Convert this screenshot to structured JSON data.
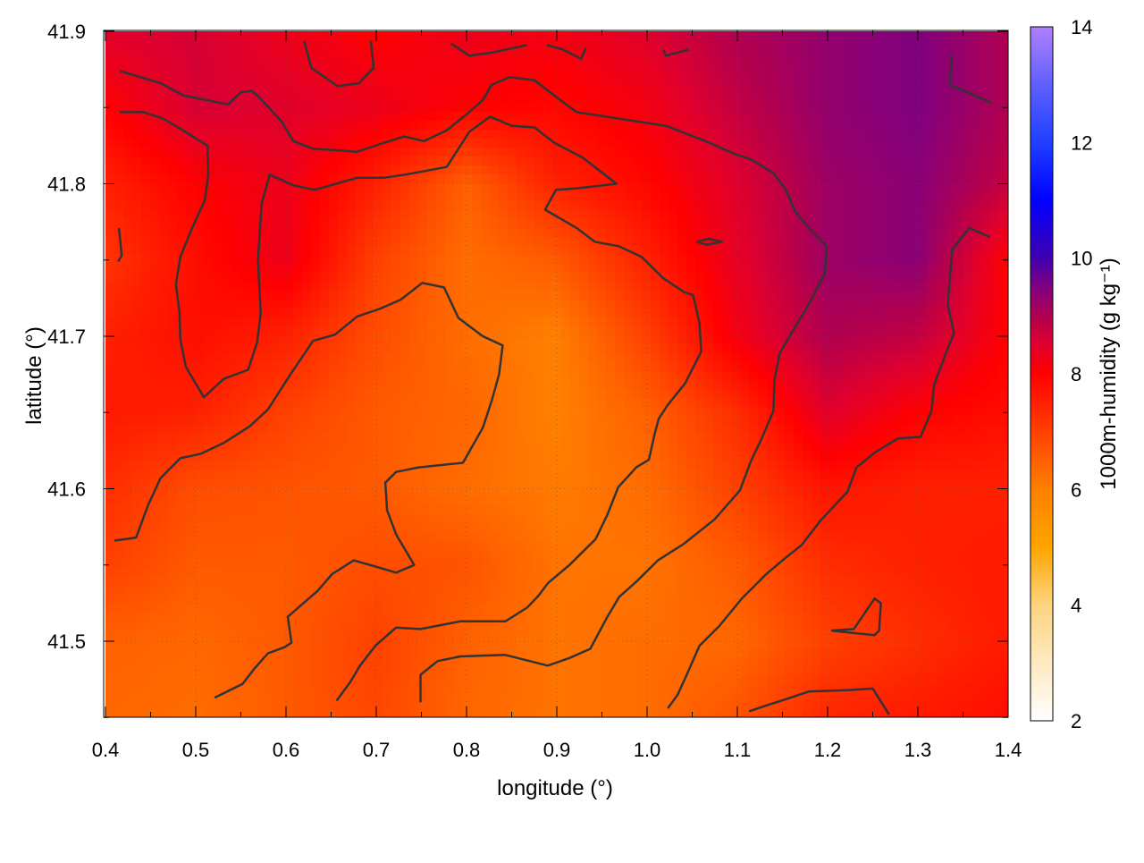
{
  "chart_data": {
    "type": "heatmap",
    "title": "",
    "xlabel": "longitude (°)",
    "ylabel": "latitude (°)",
    "colorbar_label": "1000m-humidity (g kg⁻¹)",
    "xlim": [
      0.4,
      1.4
    ],
    "ylim": [
      41.45,
      41.9
    ],
    "x_ticks": [
      "0.4",
      "0.5",
      "0.6",
      "0.7",
      "0.8",
      "0.9",
      "1.0",
      "1.1",
      "1.2",
      "1.3",
      "1.4"
    ],
    "y_ticks": [
      "41.5",
      "41.6",
      "41.7",
      "41.8",
      "41.9"
    ],
    "colorbar_range": [
      2,
      14
    ],
    "colorbar_ticks": [
      "2",
      "4",
      "6",
      "8",
      "10",
      "12",
      "14"
    ],
    "grid": true,
    "palette": [
      [
        2,
        "#ffffff"
      ],
      [
        4,
        "#fdd480"
      ],
      [
        5,
        "#ffa500"
      ],
      [
        6,
        "#ff8000"
      ],
      [
        7,
        "#ff4000"
      ],
      [
        8,
        "#ff0000"
      ],
      [
        8.5,
        "#e0002c"
      ],
      [
        9,
        "#b00050"
      ],
      [
        9.5,
        "#800080"
      ],
      [
        10,
        "#4000b0"
      ],
      [
        11,
        "#0000ff"
      ],
      [
        12,
        "#2040ff"
      ],
      [
        13,
        "#6060ff"
      ],
      [
        14,
        "#b080ff"
      ]
    ],
    "grid_lon": [
      0.4,
      0.5,
      0.6,
      0.7,
      0.8,
      0.9,
      1.0,
      1.1,
      1.2,
      1.3,
      1.4
    ],
    "grid_lat": [
      41.9,
      41.85,
      41.8,
      41.75,
      41.7,
      41.65,
      41.6,
      41.55,
      41.5,
      41.45
    ],
    "values": [
      [
        8.5,
        8.6,
        8.3,
        8.0,
        8.3,
        8.2,
        8.5,
        9.0,
        9.3,
        9.5,
        9.0
      ],
      [
        8.0,
        8.6,
        8.5,
        8.3,
        8.0,
        7.9,
        8.2,
        8.8,
        9.3,
        9.5,
        9.0
      ],
      [
        7.5,
        8.0,
        8.3,
        7.5,
        6.5,
        7.5,
        7.9,
        8.5,
        9.2,
        9.4,
        8.8
      ],
      [
        7.2,
        7.8,
        8.3,
        7.0,
        6.3,
        6.6,
        7.5,
        8.4,
        9.2,
        9.4,
        8.0
      ],
      [
        7.5,
        7.8,
        7.5,
        6.8,
        6.3,
        6.0,
        7.0,
        8.2,
        9.0,
        8.8,
        8.0
      ],
      [
        7.6,
        7.5,
        7.0,
        6.6,
        6.4,
        6.0,
        6.5,
        7.3,
        8.5,
        8.0,
        7.8
      ],
      [
        7.3,
        6.8,
        6.7,
        6.6,
        6.3,
        6.1,
        6.3,
        7.0,
        7.7,
        7.5,
        7.5
      ],
      [
        7.0,
        6.6,
        6.6,
        6.8,
        6.7,
        6.2,
        6.2,
        6.6,
        7.3,
        7.5,
        7.6
      ],
      [
        6.5,
        6.4,
        6.6,
        7.0,
        6.5,
        6.2,
        6.3,
        6.4,
        7.0,
        7.3,
        7.6
      ],
      [
        6.4,
        6.3,
        6.6,
        6.9,
        6.4,
        6.2,
        6.3,
        6.7,
        7.4,
        7.6,
        7.8
      ]
    ],
    "contour_color": "#333333",
    "contours": [
      {
        "lon": [
          0.416,
          0.461,
          0.486,
          0.536,
          0.55,
          0.562,
          0.57,
          0.595,
          0.608,
          0.63,
          0.679,
          0.709,
          0.731,
          0.753,
          0.778,
          0.803,
          0.818,
          0.828,
          0.848,
          0.875,
          0.897,
          0.922,
          0.966,
          1.021,
          1.065,
          1.095,
          1.115,
          1.14,
          1.154,
          1.164,
          1.179,
          1.199,
          1.197,
          1.179,
          1.159,
          1.147,
          1.141,
          1.14,
          1.127,
          1.115,
          1.103,
          1.075,
          1.058,
          1.041,
          1.012,
          0.988,
          0.969,
          0.956,
          0.937,
          0.914,
          0.89,
          0.843,
          0.793,
          0.768,
          0.749,
          0.749
        ],
        "lat": [
          41.874,
          41.866,
          41.858,
          41.852,
          41.86,
          41.861,
          41.857,
          41.841,
          41.828,
          41.823,
          41.821,
          41.827,
          41.831,
          41.828,
          41.835,
          41.847,
          41.855,
          41.865,
          41.87,
          41.868,
          41.858,
          41.847,
          41.843,
          41.838,
          41.828,
          41.82,
          41.816,
          41.807,
          41.796,
          41.782,
          41.771,
          41.759,
          41.741,
          41.721,
          41.701,
          41.689,
          41.671,
          41.651,
          41.633,
          41.618,
          41.599,
          41.58,
          41.572,
          41.564,
          41.553,
          41.539,
          41.529,
          41.516,
          41.495,
          41.489,
          41.484,
          41.491,
          41.49,
          41.487,
          41.478,
          41.46
        ]
      },
      {
        "lon": [
          0.416,
          0.442,
          0.463,
          0.486,
          0.513,
          0.514,
          0.51,
          0.496,
          0.483,
          0.478,
          0.482,
          0.483,
          0.489,
          0.509,
          0.531,
          0.558,
          0.568,
          0.572,
          0.569,
          0.573,
          0.582,
          0.608,
          0.632,
          0.679,
          0.709,
          0.732,
          0.778,
          0.803,
          0.826,
          0.85,
          0.875,
          0.897,
          0.929,
          0.966,
          0.922,
          0.899,
          0.887,
          0.922,
          0.942,
          0.969,
          0.994,
          1.018,
          1.041,
          1.051,
          1.058,
          1.06,
          1.042,
          1.023,
          1.013,
          1.008,
          1.002,
          0.988,
          0.968,
          0.956,
          0.943,
          0.914,
          0.89,
          0.88,
          0.867,
          0.843,
          0.793,
          0.749,
          0.722,
          0.699,
          0.682,
          0.671,
          0.656
        ],
        "lat": [
          41.847,
          41.847,
          41.843,
          41.835,
          41.825,
          41.806,
          41.789,
          41.771,
          41.752,
          41.734,
          41.716,
          41.698,
          41.68,
          41.66,
          41.672,
          41.678,
          41.696,
          41.715,
          41.75,
          41.787,
          41.806,
          41.799,
          41.796,
          41.804,
          41.804,
          41.806,
          41.811,
          41.834,
          41.844,
          41.838,
          41.837,
          41.827,
          41.817,
          41.8,
          41.797,
          41.796,
          41.783,
          41.771,
          41.762,
          41.759,
          41.752,
          41.738,
          41.729,
          41.727,
          41.709,
          41.69,
          41.669,
          41.655,
          41.646,
          41.635,
          41.619,
          41.614,
          41.601,
          41.583,
          41.567,
          41.55,
          41.538,
          41.53,
          41.522,
          41.513,
          41.513,
          41.508,
          41.509,
          41.497,
          41.484,
          41.473,
          41.461
        ]
      },
      {
        "lon": [
          0.41,
          0.434,
          0.447,
          0.461,
          0.483,
          0.506,
          0.531,
          0.56,
          0.58,
          0.605,
          0.63,
          0.654,
          0.679,
          0.704,
          0.727,
          0.751,
          0.775,
          0.791,
          0.818,
          0.84,
          0.836,
          0.828,
          0.818,
          0.796,
          0.747,
          0.722,
          0.71,
          0.712,
          0.722,
          0.742,
          0.722,
          0.699,
          0.675,
          0.651,
          0.635,
          0.602,
          0.606,
          0.598,
          0.58,
          0.565,
          0.552,
          0.521
        ],
        "lat": [
          41.566,
          41.568,
          41.589,
          41.607,
          41.62,
          41.623,
          41.63,
          41.641,
          41.652,
          41.675,
          41.697,
          41.701,
          41.713,
          41.718,
          41.724,
          41.735,
          41.732,
          41.712,
          41.7,
          41.694,
          41.675,
          41.658,
          41.64,
          41.617,
          41.614,
          41.611,
          41.604,
          41.586,
          41.57,
          41.55,
          41.545,
          41.549,
          41.553,
          41.544,
          41.533,
          41.516,
          41.499,
          41.496,
          41.492,
          41.482,
          41.472,
          41.463
        ]
      },
      {
        "lon": [
          1.38,
          1.357,
          1.338,
          1.333,
          1.34,
          1.331,
          1.318,
          1.315,
          1.303,
          1.278,
          1.253,
          1.232,
          1.222,
          1.192,
          1.171,
          1.152,
          1.132,
          1.105,
          1.08,
          1.058,
          1.044,
          1.034,
          1.023
        ],
        "lat": [
          41.765,
          41.771,
          41.757,
          41.721,
          41.702,
          41.689,
          41.668,
          41.651,
          41.634,
          41.633,
          41.624,
          41.614,
          41.598,
          41.579,
          41.563,
          41.554,
          41.544,
          41.528,
          41.51,
          41.497,
          41.478,
          41.465,
          41.456
        ]
      },
      {
        "lon": [
          0.62,
          0.628,
          0.657,
          0.681,
          0.697,
          0.694
        ],
        "lat": [
          41.894,
          41.876,
          41.864,
          41.866,
          41.876,
          41.894
        ]
      },
      {
        "lon": [
          0.783,
          0.803,
          0.828,
          0.867
        ],
        "lat": [
          41.892,
          41.884,
          41.886,
          41.891
        ]
      },
      {
        "lon": [
          0.889,
          0.907,
          0.927,
          0.932
        ],
        "lat": [
          41.891,
          41.888,
          41.882,
          41.889
        ]
      },
      {
        "lon": [
          1.018,
          1.021,
          1.046
        ],
        "lat": [
          41.888,
          41.884,
          41.888
        ]
      },
      {
        "lon": [
          1.338,
          1.335,
          1.382
        ],
        "lat": [
          41.884,
          41.865,
          41.853
        ]
      },
      {
        "lon": [
          0.415,
          0.418,
          0.414
        ],
        "lat": [
          41.771,
          41.753,
          41.749
        ]
      },
      {
        "lon": [
          1.055,
          1.068,
          1.083,
          1.066,
          1.055
        ],
        "lat": [
          41.762,
          41.764,
          41.762,
          41.76,
          41.762
        ]
      },
      {
        "lon": [
          1.204,
          1.229,
          1.252,
          1.259,
          1.257,
          1.252,
          1.204
        ],
        "lat": [
          41.507,
          41.508,
          41.528,
          41.525,
          41.507,
          41.504,
          41.507
        ]
      },
      {
        "lon": [
          1.113,
          1.133,
          1.154,
          1.179,
          1.224,
          1.25,
          1.268
        ],
        "lat": [
          41.454,
          41.458,
          41.462,
          41.467,
          41.468,
          41.469,
          41.452
        ]
      }
    ]
  }
}
